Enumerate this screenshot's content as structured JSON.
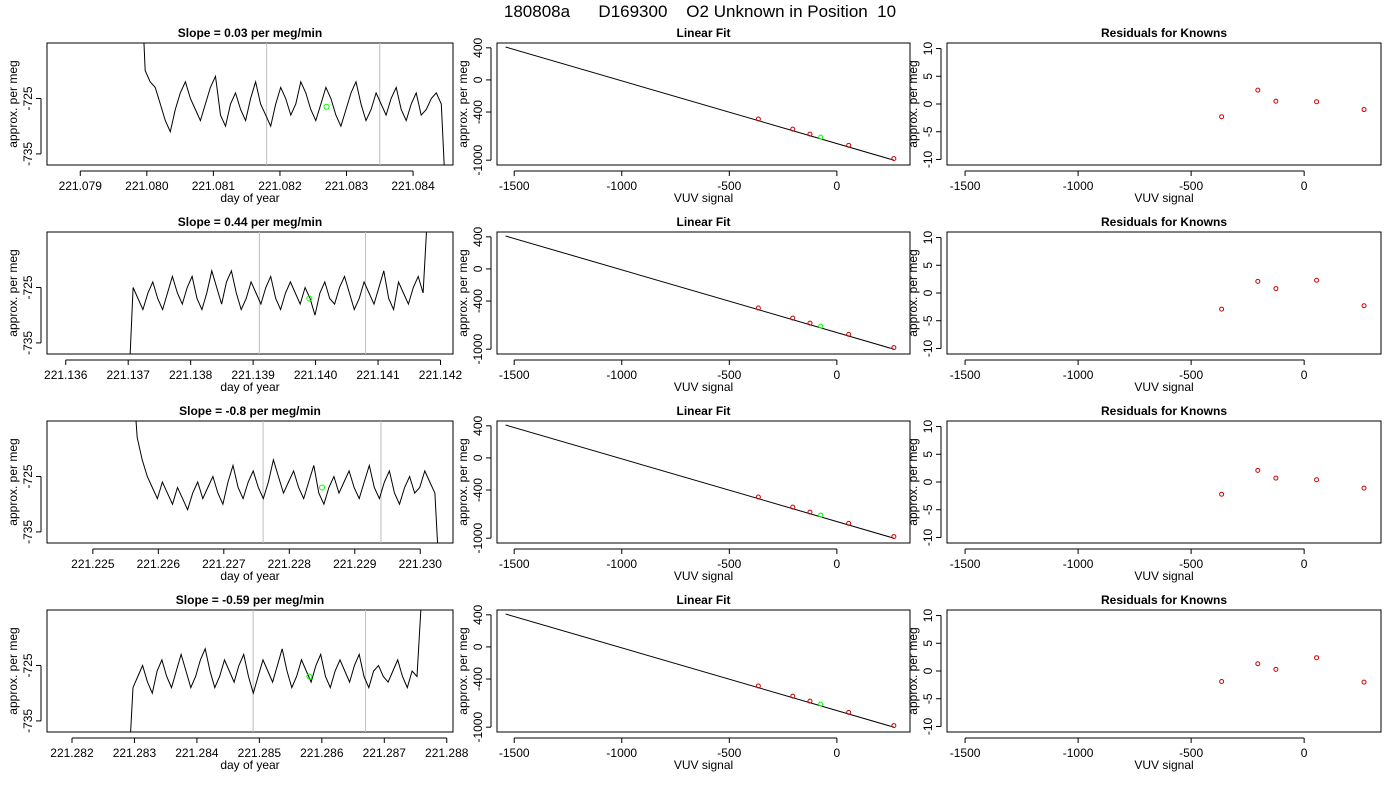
{
  "page_title": "180808a      D169300    O2 Unknown in Position  10",
  "colors": {
    "trace": "#000000",
    "vline": "#bebebe",
    "unknown": "#00ff00",
    "known": "#cc0000"
  },
  "chart_data": [
    {
      "type": "line",
      "title": "Slope =  0.03  per meg/min",
      "xlabel": "day of year",
      "ylabel": "approx. per meg",
      "xticks": [
        "221.079",
        "221.080",
        "221.081",
        "221.082",
        "221.083",
        "221.084"
      ],
      "xtick_values": [
        221.079,
        221.08,
        221.081,
        221.082,
        221.083,
        221.084
      ],
      "xlim": [
        221.0785,
        221.0846
      ],
      "yticks": [
        "-725",
        "-735"
      ],
      "ytick_values": [
        -725,
        -735
      ],
      "ylim": [
        -737,
        -715
      ],
      "vlines": [
        221.0818,
        221.0835
      ],
      "highlight_point": [
        221.0827,
        -726.5
      ],
      "series": [
        {
          "x0": 221.0799,
          "x1": 221.0845,
          "start": -700,
          "end": -745,
          "steady": -727,
          "values": [
            -720,
            -722,
            -723,
            -726,
            -729,
            -731,
            -727,
            -724,
            -722,
            -725,
            -727,
            -729,
            -726,
            -723,
            -721,
            -728,
            -730,
            -726,
            -724,
            -727,
            -729,
            -725,
            -722,
            -726,
            -728,
            -730,
            -726,
            -723,
            -725,
            -728,
            -726,
            -722,
            -724,
            -727,
            -729,
            -726,
            -723,
            -725,
            -728,
            -730,
            -727,
            -724,
            -722,
            -726,
            -729,
            -727,
            -724,
            -726,
            -728,
            -725,
            -723,
            -727,
            -729,
            -726,
            -724,
            -728,
            -727,
            -725,
            -724,
            -726
          ]
        }
      ]
    },
    {
      "type": "line",
      "title": "Linear Fit",
      "xlabel": "VUV signal",
      "ylabel": "approx. per meg",
      "xticks": [
        "-1500",
        "-1000",
        "-500",
        "0"
      ],
      "xtick_values": [
        -1500,
        -1000,
        -500,
        0
      ],
      "xlim": [
        -1580,
        340
      ],
      "yticks": [
        "400",
        "0",
        "-400",
        "-1000"
      ],
      "ytick_values": [
        400,
        0,
        -400,
        -1000
      ],
      "ylim": [
        -1060,
        460
      ],
      "fit_line": [
        [
          -1540,
          410
        ],
        [
          265,
          -1000
        ]
      ],
      "knowns": [
        [
          -365,
          -487
        ],
        [
          -205,
          -613
        ],
        [
          -125,
          -675
        ],
        [
          55,
          -815
        ],
        [
          265,
          -980
        ]
      ],
      "unknown": [
        [
          -75,
          -713
        ]
      ]
    },
    {
      "type": "scatter",
      "title": "Residuals for Knowns",
      "xlabel": "VUV signal",
      "ylabel": "approx. per meg",
      "xticks": [
        "-1500",
        "-1000",
        "-500",
        "0"
      ],
      "xtick_values": [
        -1500,
        -1000,
        -500,
        0
      ],
      "xlim": [
        -1580,
        340
      ],
      "yticks": [
        "10",
        "5",
        "0",
        "-5",
        "-10"
      ],
      "ytick_values": [
        10,
        5,
        0,
        -5,
        -10
      ],
      "ylim": [
        -11,
        11
      ],
      "points": [
        [
          -365,
          -2.3
        ],
        [
          -205,
          2.5
        ],
        [
          -125,
          0.5
        ],
        [
          55,
          0.4
        ],
        [
          265,
          -1.0
        ]
      ]
    },
    {
      "type": "line",
      "title": "Slope =  0.44  per meg/min",
      "xlabel": "day of year",
      "ylabel": "approx. per meg",
      "xticks": [
        "221.136",
        "221.137",
        "221.138",
        "221.139",
        "221.140",
        "221.141",
        "221.142"
      ],
      "xtick_values": [
        221.136,
        221.137,
        221.138,
        221.139,
        221.14,
        221.141,
        221.142
      ],
      "xlim": [
        221.1357,
        221.1422
      ],
      "yticks": [
        "-725",
        "-735"
      ],
      "ytick_values": [
        -725,
        -735
      ],
      "ylim": [
        -737,
        -715
      ],
      "vlines": [
        221.1391,
        221.1408
      ],
      "highlight_point": [
        221.1399,
        -727
      ],
      "series": [
        {
          "x0": 221.137,
          "x1": 221.1418,
          "start": -745,
          "end": -710,
          "steady": -727,
          "values": [
            -725,
            -727,
            -729,
            -726,
            -724,
            -727,
            -729,
            -726,
            -723,
            -726,
            -728,
            -725,
            -723,
            -727,
            -729,
            -726,
            -722,
            -725,
            -728,
            -724,
            -722,
            -726,
            -729,
            -727,
            -724,
            -726,
            -728,
            -725,
            -723,
            -727,
            -729,
            -726,
            -724,
            -726,
            -728,
            -725,
            -727,
            -730,
            -726,
            -724,
            -727,
            -728,
            -725,
            -723,
            -726,
            -729,
            -727,
            -724,
            -726,
            -728,
            -725,
            -722,
            -727,
            -729,
            -724,
            -726,
            -728,
            -725,
            -723,
            -726
          ]
        }
      ]
    },
    {
      "type": "line",
      "title": "Linear Fit",
      "xlabel": "VUV signal",
      "ylabel": "approx. per meg",
      "xticks": [
        "-1500",
        "-1000",
        "-500",
        "0"
      ],
      "xtick_values": [
        -1500,
        -1000,
        -500,
        0
      ],
      "xlim": [
        -1580,
        340
      ],
      "yticks": [
        "400",
        "0",
        "-400",
        "-1000"
      ],
      "ytick_values": [
        400,
        0,
        -400,
        -1000
      ],
      "ylim": [
        -1060,
        460
      ],
      "fit_line": [
        [
          -1540,
          410
        ],
        [
          265,
          -1000
        ]
      ],
      "knowns": [
        [
          -365,
          -487
        ],
        [
          -205,
          -613
        ],
        [
          -125,
          -675
        ],
        [
          55,
          -815
        ],
        [
          265,
          -980
        ]
      ],
      "unknown": [
        [
          -75,
          -713
        ]
      ]
    },
    {
      "type": "scatter",
      "title": "Residuals for Knowns",
      "xlabel": "VUV signal",
      "ylabel": "approx. per meg",
      "xticks": [
        "-1500",
        "-1000",
        "-500",
        "0"
      ],
      "xtick_values": [
        -1500,
        -1000,
        -500,
        0
      ],
      "xlim": [
        -1580,
        340
      ],
      "yticks": [
        "10",
        "5",
        "0",
        "-5",
        "-10"
      ],
      "ytick_values": [
        10,
        5,
        0,
        -5,
        -10
      ],
      "ylim": [
        -11,
        11
      ],
      "points": [
        [
          -365,
          -2.9
        ],
        [
          -205,
          2.1
        ],
        [
          -125,
          0.8
        ],
        [
          55,
          2.3
        ],
        [
          265,
          -2.3
        ]
      ]
    },
    {
      "type": "line",
      "title": "Slope =  -0.8  per meg/min",
      "xlabel": "day of year",
      "ylabel": "approx. per meg",
      "xticks": [
        "221.225",
        "221.226",
        "221.227",
        "221.228",
        "221.229",
        "221.230"
      ],
      "xtick_values": [
        221.225,
        221.226,
        221.227,
        221.228,
        221.229,
        221.23
      ],
      "xlim": [
        221.2243,
        221.2305
      ],
      "yticks": [
        "-725",
        "-735"
      ],
      "ytick_values": [
        -725,
        -735
      ],
      "ylim": [
        -737,
        -715
      ],
      "vlines": [
        221.2276,
        221.2294
      ],
      "highlight_point": [
        221.2285,
        -727
      ],
      "series": [
        {
          "x0": 221.2256,
          "x1": 221.2303,
          "start": -705,
          "end": -745,
          "steady": -727,
          "values": [
            -718,
            -722,
            -725,
            -727,
            -729,
            -726,
            -728,
            -730,
            -727,
            -729,
            -731,
            -728,
            -726,
            -729,
            -727,
            -725,
            -728,
            -730,
            -726,
            -723,
            -727,
            -729,
            -726,
            -724,
            -727,
            -729,
            -726,
            -722,
            -725,
            -728,
            -726,
            -724,
            -727,
            -729,
            -726,
            -723,
            -728,
            -730,
            -727,
            -725,
            -728,
            -726,
            -724,
            -727,
            -729,
            -726,
            -723,
            -727,
            -729,
            -726,
            -724,
            -728,
            -730,
            -727,
            -725,
            -728,
            -727,
            -724,
            -726,
            -728
          ]
        }
      ]
    },
    {
      "type": "line",
      "title": "Linear Fit",
      "xlabel": "VUV signal",
      "ylabel": "approx. per meg",
      "xticks": [
        "-1500",
        "-1000",
        "-500",
        "0"
      ],
      "xtick_values": [
        -1500,
        -1000,
        -500,
        0
      ],
      "xlim": [
        -1580,
        340
      ],
      "yticks": [
        "400",
        "0",
        "-400",
        "-1000"
      ],
      "ytick_values": [
        400,
        0,
        -400,
        -1000
      ],
      "ylim": [
        -1060,
        460
      ],
      "fit_line": [
        [
          -1540,
          410
        ],
        [
          265,
          -1000
        ]
      ],
      "knowns": [
        [
          -365,
          -487
        ],
        [
          -205,
          -613
        ],
        [
          -125,
          -675
        ],
        [
          55,
          -815
        ],
        [
          265,
          -980
        ]
      ],
      "unknown": [
        [
          -75,
          -713
        ]
      ]
    },
    {
      "type": "scatter",
      "title": "Residuals for Knowns",
      "xlabel": "VUV signal",
      "ylabel": "approx. per meg",
      "xticks": [
        "-1500",
        "-1000",
        "-500",
        "0"
      ],
      "xtick_values": [
        -1500,
        -1000,
        -500,
        0
      ],
      "xlim": [
        -1580,
        340
      ],
      "yticks": [
        "10",
        "5",
        "0",
        "-5",
        "-10"
      ],
      "ytick_values": [
        10,
        5,
        0,
        -5,
        -10
      ],
      "ylim": [
        -11,
        11
      ],
      "points": [
        [
          -365,
          -2.2
        ],
        [
          -205,
          2.1
        ],
        [
          -125,
          0.7
        ],
        [
          55,
          0.4
        ],
        [
          265,
          -1.1
        ]
      ]
    },
    {
      "type": "line",
      "title": "Slope =  -0.59  per meg/min",
      "xlabel": "day of year",
      "ylabel": "approx. per meg",
      "xticks": [
        "221.282",
        "221.283",
        "221.284",
        "221.285",
        "221.286",
        "221.287",
        "221.288"
      ],
      "xtick_values": [
        221.282,
        221.283,
        221.284,
        221.285,
        221.286,
        221.287,
        221.288
      ],
      "xlim": [
        221.2816,
        221.2881
      ],
      "yticks": [
        "-725",
        "-735"
      ],
      "ytick_values": [
        -725,
        -735
      ],
      "ylim": [
        -737,
        -715
      ],
      "vlines": [
        221.2849,
        221.2867
      ],
      "highlight_point": [
        221.2858,
        -727
      ],
      "series": [
        {
          "x0": 221.2829,
          "x1": 221.2876,
          "start": -745,
          "end": -712,
          "steady": -727,
          "values": [
            -729,
            -727,
            -725,
            -728,
            -730,
            -726,
            -724,
            -727,
            -729,
            -726,
            -723,
            -726,
            -729,
            -727,
            -724,
            -722,
            -726,
            -729,
            -727,
            -724,
            -726,
            -728,
            -725,
            -723,
            -727,
            -730,
            -727,
            -724,
            -726,
            -728,
            -725,
            -722,
            -726,
            -729,
            -727,
            -724,
            -726,
            -728,
            -725,
            -723,
            -727,
            -729,
            -726,
            -724,
            -726,
            -728,
            -725,
            -723,
            -727,
            -729,
            -726,
            -725,
            -727,
            -728,
            -726,
            -724,
            -727,
            -729,
            -726,
            -727
          ]
        }
      ]
    },
    {
      "type": "line",
      "title": "Linear Fit",
      "xlabel": "VUV signal",
      "ylabel": "approx. per meg",
      "xticks": [
        "-1500",
        "-1000",
        "-500",
        "0"
      ],
      "xtick_values": [
        -1500,
        -1000,
        -500,
        0
      ],
      "xlim": [
        -1580,
        340
      ],
      "yticks": [
        "400",
        "0",
        "-400",
        "-1000"
      ],
      "ytick_values": [
        400,
        0,
        -400,
        -1000
      ],
      "ylim": [
        -1060,
        460
      ],
      "fit_line": [
        [
          -1540,
          410
        ],
        [
          265,
          -1000
        ]
      ],
      "knowns": [
        [
          -365,
          -487
        ],
        [
          -205,
          -613
        ],
        [
          -125,
          -675
        ],
        [
          55,
          -815
        ],
        [
          265,
          -980
        ]
      ],
      "unknown": [
        [
          -75,
          -713
        ]
      ]
    },
    {
      "type": "scatter",
      "title": "Residuals for Knowns",
      "xlabel": "VUV signal",
      "ylabel": "approx. per meg",
      "xticks": [
        "-1500",
        "-1000",
        "-500",
        "0"
      ],
      "xtick_values": [
        -1500,
        -1000,
        -500,
        0
      ],
      "xlim": [
        -1580,
        340
      ],
      "yticks": [
        "10",
        "5",
        "0",
        "-5",
        "-10"
      ],
      "ytick_values": [
        10,
        5,
        0,
        -5,
        -10
      ],
      "ylim": [
        -11,
        11
      ],
      "points": [
        [
          -365,
          -1.9
        ],
        [
          -205,
          1.3
        ],
        [
          -125,
          0.3
        ],
        [
          55,
          2.4
        ],
        [
          265,
          -2.0
        ]
      ]
    }
  ]
}
